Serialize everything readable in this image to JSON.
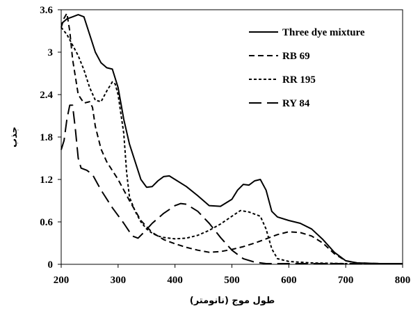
{
  "chart_data": {
    "type": "line",
    "title": "",
    "xlabel": "طول موج (نانومتر)",
    "ylabel": "جذب",
    "xlim": [
      200,
      800
    ],
    "ylim": [
      0,
      3.6
    ],
    "x_ticks": [
      200,
      300,
      400,
      500,
      600,
      700,
      800
    ],
    "x_tick_labels": [
      "200",
      "300",
      "400",
      "500",
      "600",
      "700",
      "800"
    ],
    "y_ticks": [
      0,
      0.6,
      1.2,
      1.8,
      2.4,
      3,
      3.6
    ],
    "y_tick_labels": [
      "0",
      "0.6",
      "1.2",
      "1.8",
      "2.4",
      "3",
      "3.6"
    ],
    "grid": false,
    "legend_position": "top-right",
    "series": [
      {
        "name": "Three dye mixture",
        "style": "solid",
        "color": "#000000",
        "points": [
          [
            200,
            3.4
          ],
          [
            210,
            3.47
          ],
          [
            220,
            3.5
          ],
          [
            230,
            3.53
          ],
          [
            240,
            3.5
          ],
          [
            250,
            3.25
          ],
          [
            260,
            3.0
          ],
          [
            270,
            2.85
          ],
          [
            280,
            2.78
          ],
          [
            290,
            2.76
          ],
          [
            300,
            2.5
          ],
          [
            310,
            2.05
          ],
          [
            320,
            1.7
          ],
          [
            330,
            1.45
          ],
          [
            340,
            1.2
          ],
          [
            350,
            1.09
          ],
          [
            360,
            1.1
          ],
          [
            370,
            1.18
          ],
          [
            380,
            1.24
          ],
          [
            390,
            1.25
          ],
          [
            400,
            1.2
          ],
          [
            420,
            1.1
          ],
          [
            440,
            0.97
          ],
          [
            460,
            0.83
          ],
          [
            480,
            0.82
          ],
          [
            500,
            0.92
          ],
          [
            510,
            1.05
          ],
          [
            520,
            1.13
          ],
          [
            530,
            1.12
          ],
          [
            540,
            1.18
          ],
          [
            550,
            1.2
          ],
          [
            560,
            1.05
          ],
          [
            570,
            0.75
          ],
          [
            580,
            0.67
          ],
          [
            600,
            0.62
          ],
          [
            620,
            0.58
          ],
          [
            640,
            0.5
          ],
          [
            660,
            0.35
          ],
          [
            680,
            0.17
          ],
          [
            700,
            0.05
          ],
          [
            720,
            0.02
          ],
          [
            760,
            0.01
          ],
          [
            800,
            0.01
          ]
        ]
      },
      {
        "name": "RB 69",
        "style": "dashed",
        "color": "#000000",
        "points": [
          [
            200,
            3.35
          ],
          [
            205,
            3.48
          ],
          [
            210,
            3.55
          ],
          [
            215,
            3.3
          ],
          [
            220,
            2.9
          ],
          [
            230,
            2.4
          ],
          [
            240,
            2.28
          ],
          [
            250,
            2.3
          ],
          [
            255,
            2.22
          ],
          [
            260,
            1.95
          ],
          [
            270,
            1.63
          ],
          [
            280,
            1.45
          ],
          [
            300,
            1.2
          ],
          [
            320,
            0.9
          ],
          [
            340,
            0.62
          ],
          [
            360,
            0.45
          ],
          [
            380,
            0.35
          ],
          [
            400,
            0.29
          ],
          [
            420,
            0.24
          ],
          [
            440,
            0.2
          ],
          [
            460,
            0.17
          ],
          [
            480,
            0.18
          ],
          [
            500,
            0.21
          ],
          [
            520,
            0.25
          ],
          [
            540,
            0.3
          ],
          [
            560,
            0.36
          ],
          [
            580,
            0.42
          ],
          [
            600,
            0.46
          ],
          [
            620,
            0.45
          ],
          [
            640,
            0.4
          ],
          [
            660,
            0.3
          ],
          [
            680,
            0.15
          ],
          [
            700,
            0.05
          ],
          [
            720,
            0.02
          ],
          [
            760,
            0.01
          ],
          [
            800,
            0.01
          ]
        ]
      },
      {
        "name": "RR 195",
        "style": "short-dashed",
        "color": "#000000",
        "points": [
          [
            200,
            3.35
          ],
          [
            210,
            3.25
          ],
          [
            220,
            3.1
          ],
          [
            230,
            2.95
          ],
          [
            240,
            2.75
          ],
          [
            250,
            2.5
          ],
          [
            260,
            2.32
          ],
          [
            270,
            2.3
          ],
          [
            280,
            2.45
          ],
          [
            290,
            2.58
          ],
          [
            295,
            2.55
          ],
          [
            300,
            2.4
          ],
          [
            310,
            1.85
          ],
          [
            315,
            1.3
          ],
          [
            320,
            0.95
          ],
          [
            330,
            0.75
          ],
          [
            340,
            0.6
          ],
          [
            350,
            0.5
          ],
          [
            360,
            0.44
          ],
          [
            370,
            0.4
          ],
          [
            380,
            0.38
          ],
          [
            400,
            0.36
          ],
          [
            420,
            0.37
          ],
          [
            440,
            0.41
          ],
          [
            460,
            0.48
          ],
          [
            480,
            0.57
          ],
          [
            500,
            0.68
          ],
          [
            515,
            0.76
          ],
          [
            530,
            0.74
          ],
          [
            550,
            0.68
          ],
          [
            560,
            0.5
          ],
          [
            570,
            0.22
          ],
          [
            580,
            0.08
          ],
          [
            600,
            0.04
          ],
          [
            640,
            0.02
          ],
          [
            700,
            0.01
          ],
          [
            800,
            0.01
          ]
        ]
      },
      {
        "name": "RY 84",
        "style": "long-dashed",
        "color": "#000000",
        "points": [
          [
            200,
            1.62
          ],
          [
            205,
            1.75
          ],
          [
            210,
            2.05
          ],
          [
            215,
            2.25
          ],
          [
            220,
            2.25
          ],
          [
            225,
            1.9
          ],
          [
            230,
            1.5
          ],
          [
            235,
            1.36
          ],
          [
            245,
            1.33
          ],
          [
            255,
            1.27
          ],
          [
            270,
            1.05
          ],
          [
            290,
            0.8
          ],
          [
            310,
            0.58
          ],
          [
            325,
            0.4
          ],
          [
            335,
            0.37
          ],
          [
            345,
            0.45
          ],
          [
            360,
            0.58
          ],
          [
            380,
            0.72
          ],
          [
            400,
            0.83
          ],
          [
            410,
            0.86
          ],
          [
            420,
            0.85
          ],
          [
            440,
            0.75
          ],
          [
            460,
            0.58
          ],
          [
            480,
            0.38
          ],
          [
            500,
            0.2
          ],
          [
            520,
            0.08
          ],
          [
            540,
            0.03
          ],
          [
            560,
            0.01
          ],
          [
            800,
            0.01
          ]
        ]
      }
    ]
  }
}
